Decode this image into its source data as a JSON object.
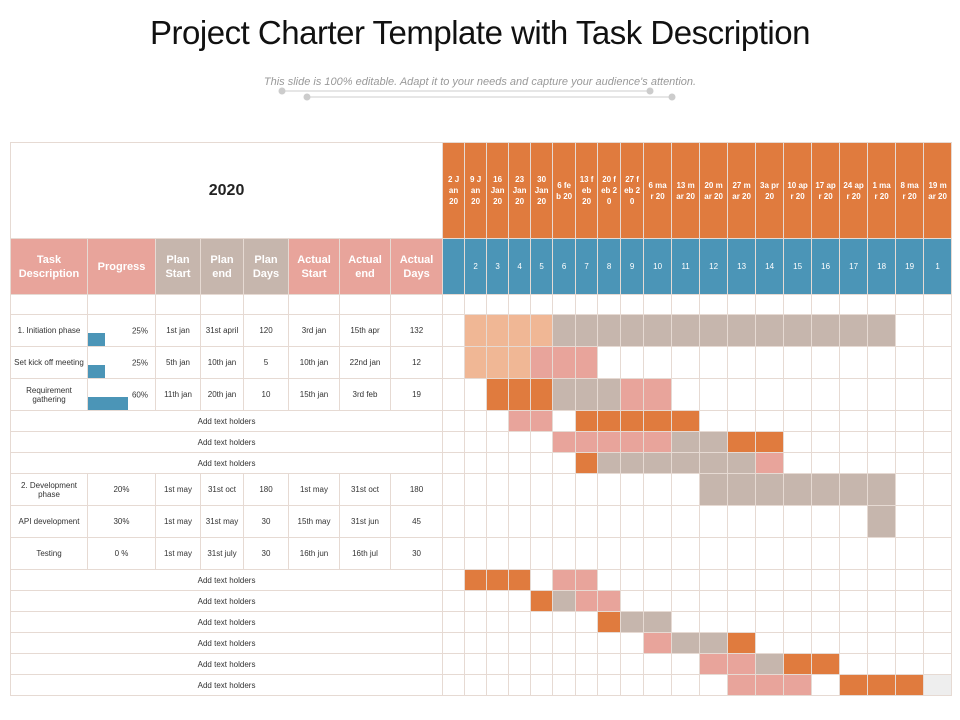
{
  "header": {
    "title": "Project Charter Template with Task Description",
    "subtitle": "This slide is 100% editable. Adapt it to your needs and capture your audience's attention."
  },
  "table": {
    "year": "2020",
    "dates": [
      "2 Jan 20",
      "9 Jan 20",
      "16 Jan 20",
      "23 Jan 20",
      "30 Jan 20",
      "6 feb 20",
      "13 feb 20",
      "20 feb 20",
      "27 feb 20",
      "6 mar 20",
      "13 mar 20",
      "20 mar 20",
      "27 mar 20",
      "3a pr 20",
      "10 apr 20",
      "17 apr 20",
      "24 apr 20",
      "1 mar 20",
      "8 mar 20",
      "19 mar 20"
    ],
    "columns": [
      "Task Description",
      "Progress",
      "Plan Start",
      "Plan end",
      "Plan Days",
      "Actual Start",
      "Actual end",
      "Actual Days"
    ],
    "week_numbers": [
      null,
      2,
      3,
      4,
      5,
      6,
      7,
      8,
      9,
      10,
      11,
      12,
      13,
      14,
      15,
      16,
      17,
      18,
      19,
      1
    ],
    "palette": {
      "P": "#f0b795",
      "G": "#c6b6ad",
      "O": "#e07b3e",
      "K": "#e8a49b",
      "L": "#eeeeee",
      "B": "#4b95b7"
    },
    "header_colors": "KKGGGKKK",
    "date_color": "O",
    "week_color": "B",
    "rows": [
      {
        "cells": [
          "1. Initiation phase",
          {
            "value": 25,
            "label": "25%"
          },
          "1st jan",
          "31st april",
          120,
          "3rd jan",
          "15th apr",
          132
        ],
        "timeline": ".PPPPGGGGGGGGGGGGG.."
      },
      {
        "cells": [
          "Set kick off meeting",
          {
            "value": 25,
            "label": "25%"
          },
          "5th jan",
          "10th jan",
          5,
          "10th jan",
          "22nd jan",
          12
        ],
        "timeline": ".PPPKKK............."
      },
      {
        "cells": [
          "Requirement gathering",
          {
            "value": 60,
            "label": "60%"
          },
          "11th jan",
          "20th jan",
          10,
          "15th jan",
          "3rd feb",
          19
        ],
        "timeline": "..OOOGGGKK.........."
      },
      {
        "text": "Add text holders",
        "timeline": "...KK.OOOOO........."
      },
      {
        "text": "Add text holders",
        "timeline": ".....KKKKKGGOO......"
      },
      {
        "text": "Add text holders",
        "timeline": "......OGGGGGGK......"
      },
      {
        "cells": [
          "2. Development phase",
          "20%",
          "1st may",
          "31st oct",
          180,
          "1st may",
          "31st oct",
          180
        ],
        "timeline": "...........GGGGGGG.."
      },
      {
        "cells": [
          "API development",
          "30%",
          "1st may",
          "31st may",
          30,
          "15th may",
          "31st jun",
          45
        ],
        "timeline": ".................G.."
      },
      {
        "cells": [
          "Testing",
          "0 %",
          "1st may",
          "31st july",
          30,
          "16th jun",
          "16th jul",
          30
        ],
        "timeline": "...................."
      },
      {
        "text": "Add text holders",
        "timeline": ".OOO.KK............."
      },
      {
        "text": "Add text holders",
        "timeline": "....OGKK............"
      },
      {
        "text": "Add text holders",
        "timeline": ".......OGG.........."
      },
      {
        "text": "Add text holders",
        "timeline": ".........KGGO......."
      },
      {
        "text": "Add text holders",
        "timeline": "...........KKGOO...."
      },
      {
        "text": "Add text holders",
        "timeline": "............KKK.OOOL"
      }
    ]
  }
}
